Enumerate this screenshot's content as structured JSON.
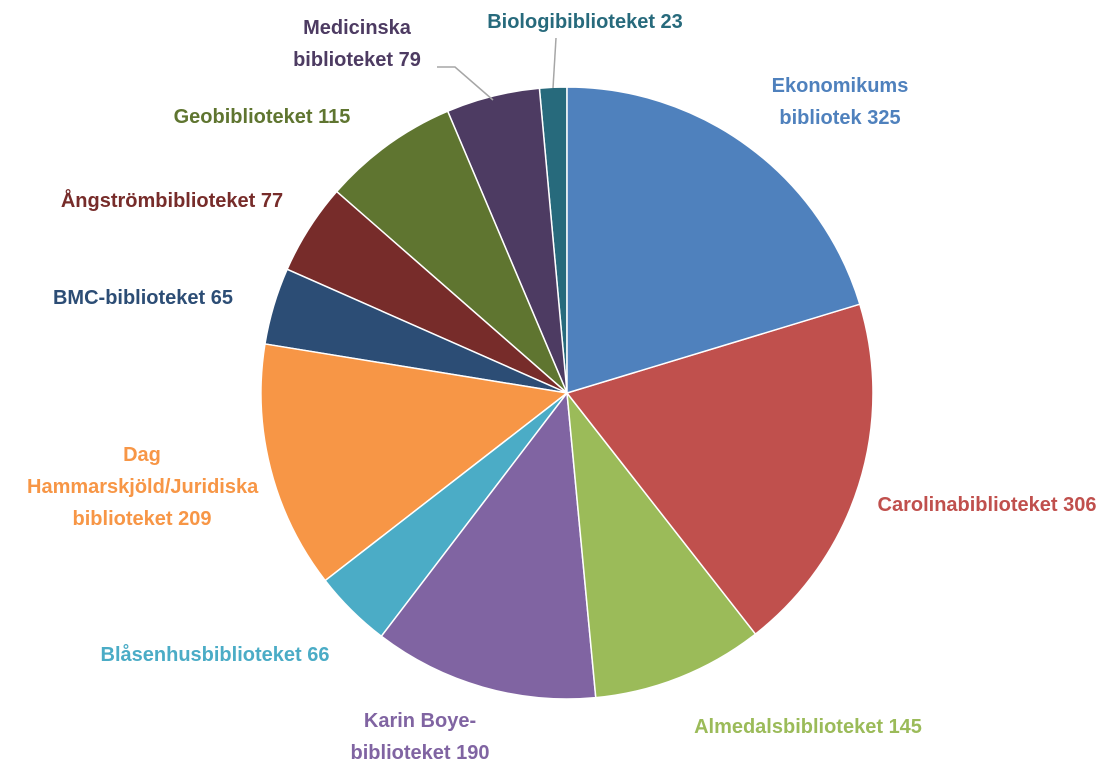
{
  "chart_data": {
    "type": "pie",
    "categories": [
      "Ekonomikums bibliotek",
      "Carolinabiblioteket",
      "Almedalsbiblioteket",
      "Karin Boye-biblioteket",
      "Blåsenhusbiblioteket",
      "Dag Hammarskjöld/Juridiska biblioteket",
      "BMC-biblioteket",
      "Ångströmbiblioteket",
      "Geobiblioteket",
      "Medicinska biblioteket",
      "Biologibiblioteket"
    ],
    "values": [
      325,
      306,
      145,
      190,
      66,
      209,
      65,
      77,
      115,
      79,
      23
    ],
    "colors": [
      "#4f81bd",
      "#c0504d",
      "#9bbb59",
      "#8064a2",
      "#4bacc6",
      "#f79646",
      "#2c4d75",
      "#772c2a",
      "#5f7530",
      "#4d3b62",
      "#276a7c"
    ]
  }
}
